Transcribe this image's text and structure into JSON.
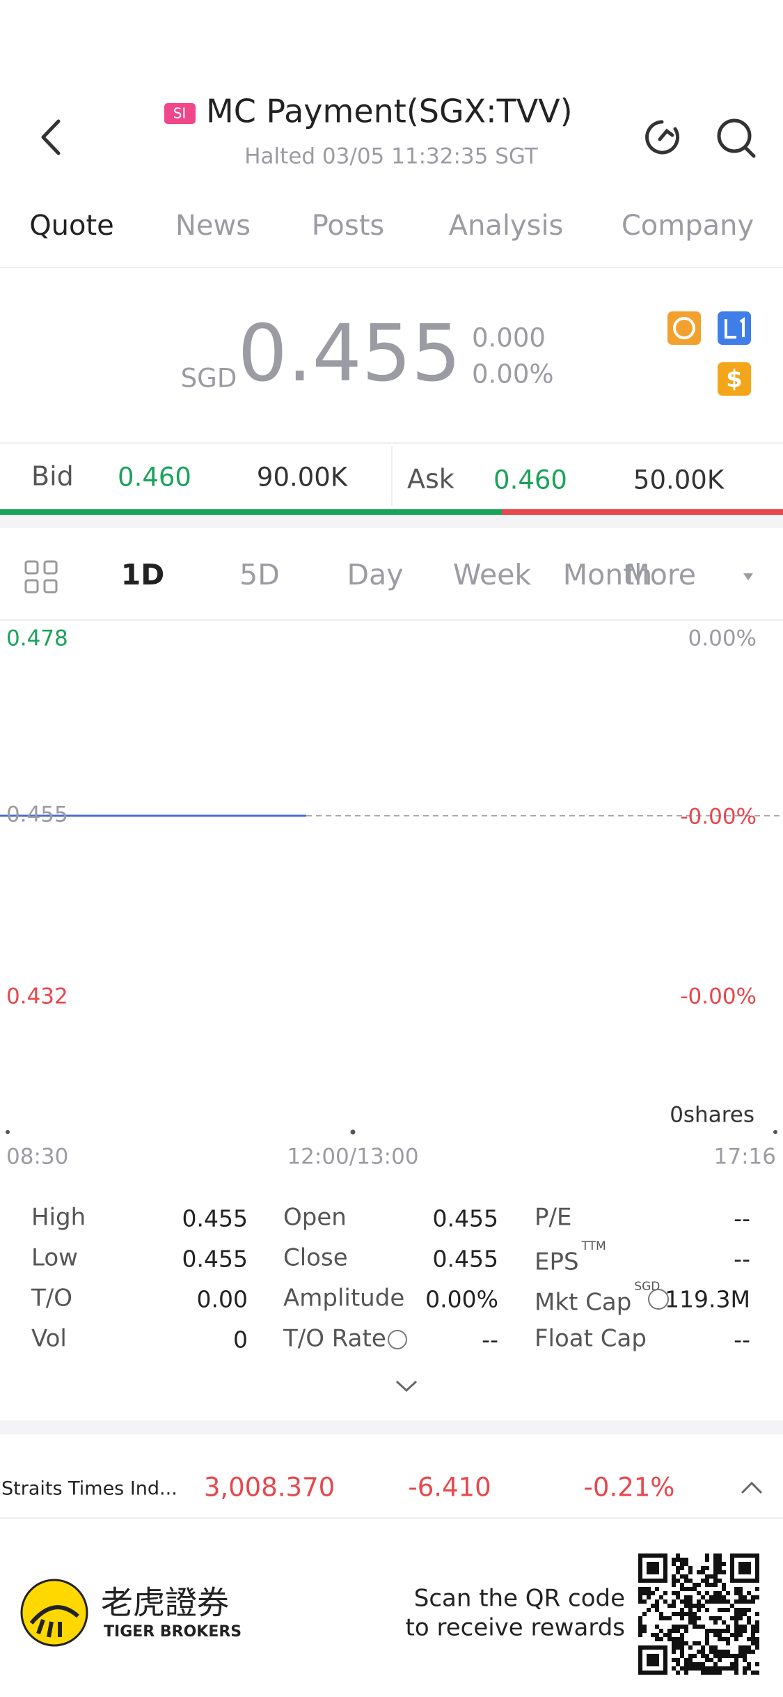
{
  "header": {
    "badge": "SI",
    "title": "MC Payment(SGX:TVV)",
    "status": "Halted 03/05 11:32:35 SGT"
  },
  "tabs": [
    "Quote",
    "News",
    "Posts",
    "Analysis",
    "Company"
  ],
  "quote": {
    "currency": "SGD",
    "price": "0.455",
    "change": "0.000",
    "change_pct": "0.00%"
  },
  "order_book": {
    "bid_label": "Bid",
    "bid_price": "0.460",
    "bid_size": "90.00K",
    "ask_label": "Ask",
    "ask_price": "0.460",
    "ask_size": "50.00K"
  },
  "periods": [
    "1D",
    "5D",
    "Day",
    "Week",
    "Month",
    "More"
  ],
  "chart": {
    "price_labels": [
      "0.478",
      "0.455",
      "0.432"
    ],
    "pct_labels": [
      "0.00%",
      "-0.00%",
      "-0.00%"
    ],
    "volume_label": "0shares",
    "time_labels": [
      "08:30",
      "12:00/13:00",
      "17:16"
    ]
  },
  "stats": {
    "rows": [
      [
        {
          "label": "High",
          "value": "0.455"
        },
        {
          "label": "Open",
          "value": "0.455"
        },
        {
          "label": "P/E",
          "value": "--"
        }
      ],
      [
        {
          "label": "Low",
          "value": "0.455"
        },
        {
          "label": "Close",
          "value": "0.455"
        },
        {
          "label": "EPS",
          "sup": "TTM",
          "value": "--"
        }
      ],
      [
        {
          "label": "T/O",
          "value": "0.00"
        },
        {
          "label": "Amplitude",
          "value": "0.00%"
        },
        {
          "label": "Mkt Cap",
          "sup": "SGD",
          "value": "119.3M"
        }
      ],
      [
        {
          "label": "Vol",
          "value": "0"
        },
        {
          "label": "T/O Rate",
          "value": "--"
        },
        {
          "label": "Float Cap",
          "value": "--"
        }
      ]
    ]
  },
  "ticker": {
    "name": "Straits Times Ind...",
    "value": "3,008.370",
    "change": "-6.410",
    "change_pct": "-0.21%"
  },
  "footer": {
    "brand_cn": "老虎證券",
    "brand_en": "TIGER BROKERS",
    "cta": [
      "Scan the QR code",
      "to receive rewards"
    ]
  }
}
